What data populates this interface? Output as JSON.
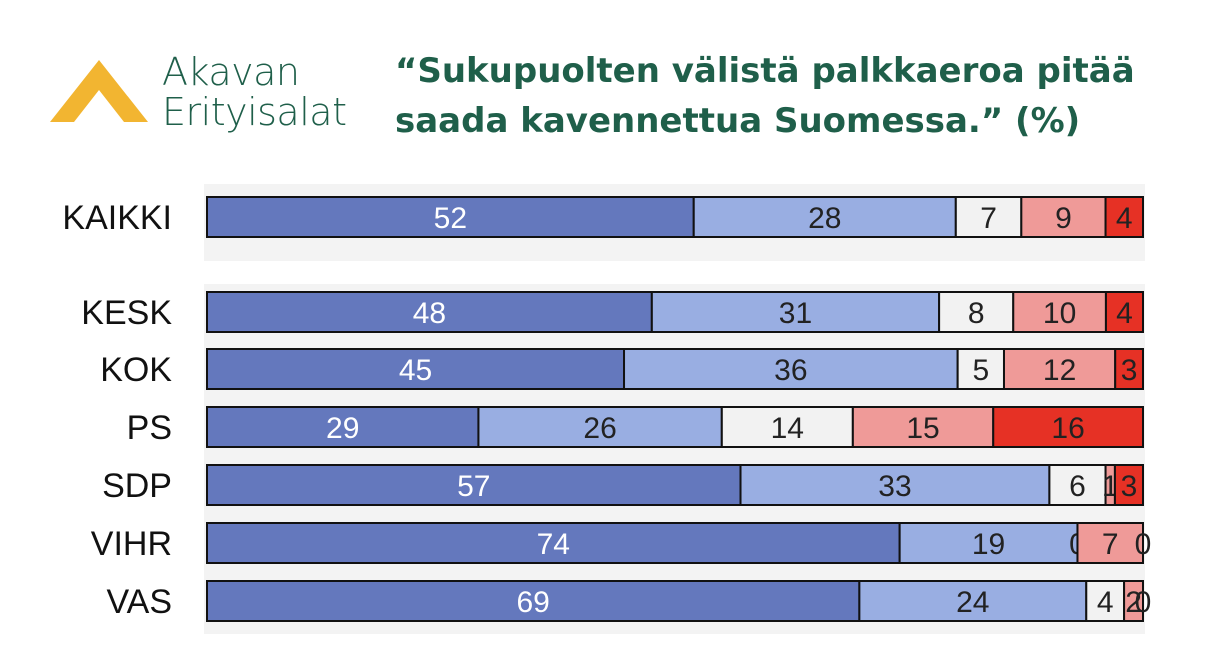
{
  "logo": {
    "line1": "Akavan",
    "line2": "Erityisalat"
  },
  "title_line1": "“Sukupuolten välistä palkkaeroa pitää",
  "title_line2": "saada kavennettua Suomessa.” (%)",
  "colors": [
    "#6478bd",
    "#99aee2",
    "#f2f2f2",
    "#ef9a98",
    "#e63125"
  ],
  "label_colors": [
    "#ffffff",
    "#222222",
    "#222222",
    "#222222",
    "#222222"
  ],
  "chart_data": {
    "type": "bar",
    "orientation": "horizontal",
    "stacked": true,
    "categories": [
      "KAIKKI",
      "KESK",
      "KOK",
      "PS",
      "SDP",
      "VIHR",
      "VAS"
    ],
    "values": [
      [
        52,
        28,
        7,
        9,
        4
      ],
      [
        48,
        31,
        8,
        10,
        4
      ],
      [
        45,
        36,
        5,
        12,
        3
      ],
      [
        29,
        26,
        14,
        15,
        16
      ],
      [
        57,
        33,
        6,
        1,
        3
      ],
      [
        74,
        19,
        0,
        7,
        0
      ],
      [
        69,
        24,
        4,
        2,
        0
      ]
    ],
    "data_labels": [
      [
        "52",
        "28",
        "7",
        "9",
        "4"
      ],
      [
        "48",
        "31",
        "8",
        "10",
        "4"
      ],
      [
        "45",
        "36",
        "5",
        "12",
        "3"
      ],
      [
        "29",
        "26",
        "14",
        "15",
        "16"
      ],
      [
        "57",
        "33",
        "6",
        "1",
        "3"
      ],
      [
        "74",
        "19",
        "0",
        "7",
        "0"
      ],
      [
        "69",
        "24",
        "4",
        "2",
        "0"
      ]
    ],
    "xlim": [
      0,
      100
    ],
    "grid": false
  }
}
